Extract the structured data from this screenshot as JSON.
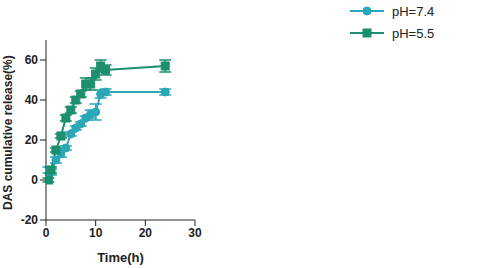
{
  "chart_data": {
    "type": "line",
    "x_label": "Time(h)",
    "y_label": "DAS cumulative release(%)",
    "x": [
      0.5,
      1,
      2,
      3,
      4,
      5,
      6,
      7,
      8,
      9,
      10,
      11,
      12,
      24
    ],
    "series": [
      {
        "name": "pH=7.4",
        "color": "#2aa7b8",
        "marker": "circle",
        "values": [
          5,
          4,
          10,
          13,
          16,
          23,
          26,
          28,
          31,
          33,
          34,
          43,
          44,
          44
        ],
        "errors": [
          1.5,
          1.5,
          1.5,
          1.5,
          1,
          1,
          1,
          1,
          1,
          2,
          4,
          2,
          1.5,
          1.5
        ]
      },
      {
        "name": "pH=5.5",
        "color": "#1b8f6e",
        "marker": "square",
        "values": [
          0,
          5,
          15,
          22,
          31,
          35,
          40,
          43,
          48,
          48,
          53,
          57,
          55,
          57
        ],
        "errors": [
          1,
          1.5,
          1,
          1,
          1.5,
          1.5,
          1.5,
          1.5,
          3,
          3,
          3,
          3,
          2.5,
          3
        ]
      }
    ],
    "xlim": [
      0,
      30
    ],
    "xticks": [
      0,
      10,
      20,
      30
    ],
    "ylim": [
      -20,
      70
    ],
    "yticks": [
      -20,
      0,
      20,
      40,
      60
    ],
    "grid": false,
    "legend": "upper right"
  }
}
